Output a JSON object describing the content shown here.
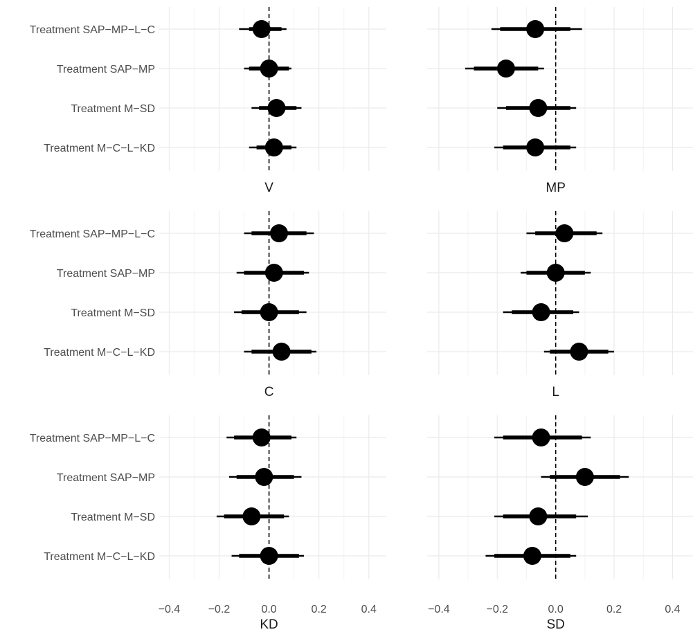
{
  "chart_data": {
    "type": "forest",
    "layout": "3x2 facet grid",
    "row_labels": [
      "Treatment SAP−MP−L−C",
      "Treatment SAP−MP",
      "Treatment M−SD",
      "Treatment M−C−L−KD"
    ],
    "x_ticks": [
      "−0.4",
      "−0.2",
      "0.0",
      "0.2",
      "0.4"
    ],
    "x_tick_values": [
      -0.4,
      -0.2,
      0.0,
      0.2,
      0.4
    ],
    "xlim": [
      -0.44,
      0.47
    ],
    "reference_line": 0,
    "grid": true,
    "panels": [
      {
        "label": "V",
        "rows": [
          {
            "est": -0.03,
            "inner": [
              -0.08,
              0.05
            ],
            "outer": [
              -0.12,
              0.07
            ]
          },
          {
            "est": 0.0,
            "inner": [
              -0.08,
              0.08
            ],
            "outer": [
              -0.1,
              0.09
            ]
          },
          {
            "est": 0.03,
            "inner": [
              -0.04,
              0.11
            ],
            "outer": [
              -0.07,
              0.13
            ]
          },
          {
            "est": 0.02,
            "inner": [
              -0.05,
              0.09
            ],
            "outer": [
              -0.08,
              0.11
            ]
          }
        ]
      },
      {
        "label": "MP",
        "rows": [
          {
            "est": -0.07,
            "inner": [
              -0.19,
              0.05
            ],
            "outer": [
              -0.22,
              0.09
            ]
          },
          {
            "est": -0.17,
            "inner": [
              -0.28,
              -0.06
            ],
            "outer": [
              -0.31,
              -0.04
            ]
          },
          {
            "est": -0.06,
            "inner": [
              -0.17,
              0.05
            ],
            "outer": [
              -0.2,
              0.07
            ]
          },
          {
            "est": -0.07,
            "inner": [
              -0.18,
              0.05
            ],
            "outer": [
              -0.21,
              0.07
            ]
          }
        ]
      },
      {
        "label": "C",
        "rows": [
          {
            "est": 0.04,
            "inner": [
              -0.07,
              0.15
            ],
            "outer": [
              -0.1,
              0.18
            ]
          },
          {
            "est": 0.02,
            "inner": [
              -0.1,
              0.14
            ],
            "outer": [
              -0.13,
              0.16
            ]
          },
          {
            "est": 0.0,
            "inner": [
              -0.11,
              0.12
            ],
            "outer": [
              -0.14,
              0.15
            ]
          },
          {
            "est": 0.05,
            "inner": [
              -0.07,
              0.17
            ],
            "outer": [
              -0.1,
              0.19
            ]
          }
        ]
      },
      {
        "label": "L",
        "rows": [
          {
            "est": 0.03,
            "inner": [
              -0.07,
              0.14
            ],
            "outer": [
              -0.1,
              0.16
            ]
          },
          {
            "est": 0.0,
            "inner": [
              -0.1,
              0.1
            ],
            "outer": [
              -0.12,
              0.12
            ]
          },
          {
            "est": -0.05,
            "inner": [
              -0.15,
              0.06
            ],
            "outer": [
              -0.18,
              0.08
            ]
          },
          {
            "est": 0.08,
            "inner": [
              -0.02,
              0.18
            ],
            "outer": [
              -0.04,
              0.2
            ]
          }
        ]
      },
      {
        "label": "KD",
        "rows": [
          {
            "est": -0.03,
            "inner": [
              -0.14,
              0.09
            ],
            "outer": [
              -0.17,
              0.11
            ]
          },
          {
            "est": -0.02,
            "inner": [
              -0.13,
              0.1
            ],
            "outer": [
              -0.16,
              0.13
            ]
          },
          {
            "est": -0.07,
            "inner": [
              -0.18,
              0.06
            ],
            "outer": [
              -0.21,
              0.08
            ]
          },
          {
            "est": 0.0,
            "inner": [
              -0.12,
              0.12
            ],
            "outer": [
              -0.15,
              0.14
            ]
          }
        ]
      },
      {
        "label": "SD",
        "rows": [
          {
            "est": -0.05,
            "inner": [
              -0.18,
              0.09
            ],
            "outer": [
              -0.21,
              0.12
            ]
          },
          {
            "est": 0.1,
            "inner": [
              -0.02,
              0.22
            ],
            "outer": [
              -0.05,
              0.25
            ]
          },
          {
            "est": -0.06,
            "inner": [
              -0.18,
              0.07
            ],
            "outer": [
              -0.21,
              0.11
            ]
          },
          {
            "est": -0.08,
            "inner": [
              -0.21,
              0.05
            ],
            "outer": [
              -0.24,
              0.07
            ]
          }
        ]
      }
    ]
  }
}
